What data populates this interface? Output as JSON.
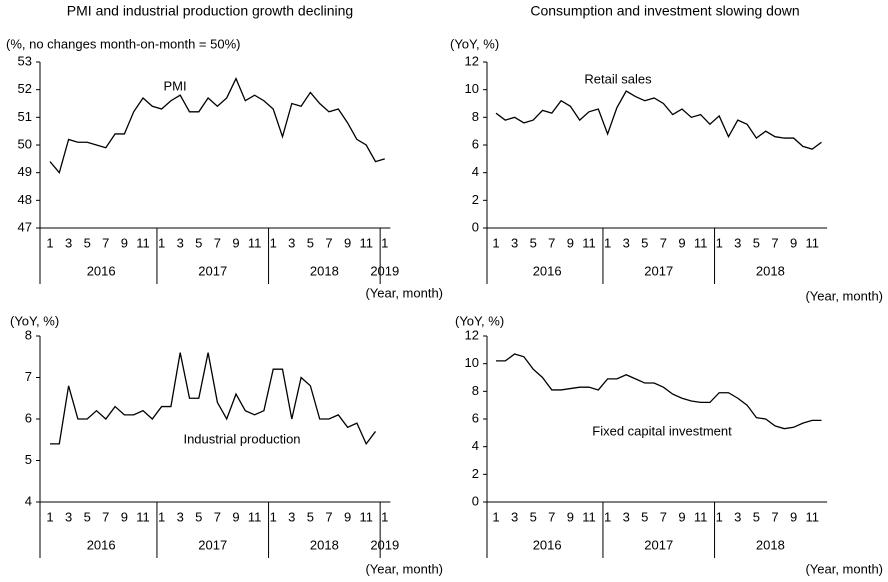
{
  "chart_data": [
    {
      "type": "line",
      "title": "PMI and industrial production growth declining",
      "y_label": "(%, no changes month-on-month  = 50%)",
      "x_label": "(Year, month)",
      "categories": [
        "1",
        null,
        "3",
        null,
        "5",
        null,
        "7",
        null,
        "9",
        null,
        "11",
        null,
        "1",
        null,
        "3",
        null,
        "5",
        null,
        "7",
        null,
        "9",
        null,
        "11",
        null,
        "1",
        null,
        "3",
        null,
        "5",
        null,
        "7",
        null,
        "9",
        null,
        "11",
        null,
        "1"
      ],
      "groups": [
        "2016",
        "2017",
        "2018",
        "2019"
      ],
      "ylim": [
        47,
        53
      ],
      "yticks": [
        47,
        48,
        49,
        50,
        51,
        52,
        53
      ],
      "series": [
        {
          "name": "PMI",
          "color": "#000000",
          "values": [
            49.4,
            49.0,
            50.2,
            50.1,
            50.1,
            50.0,
            49.9,
            50.4,
            50.4,
            51.2,
            51.7,
            51.4,
            51.3,
            51.6,
            51.8,
            51.2,
            51.2,
            51.7,
            51.4,
            51.7,
            52.4,
            51.6,
            51.8,
            51.6,
            51.3,
            50.3,
            51.5,
            51.4,
            51.9,
            51.5,
            51.2,
            51.3,
            50.8,
            50.2,
            50.0,
            49.4,
            49.5
          ]
        }
      ]
    },
    {
      "type": "line",
      "title": "Consumption and investment slowing down",
      "y_label": "(YoY, %)",
      "x_label": "(Year, month)",
      "categories": [
        "1",
        null,
        "3",
        null,
        "5",
        null,
        "7",
        null,
        "9",
        null,
        "11",
        null,
        "1",
        null,
        "3",
        null,
        "5",
        null,
        "7",
        null,
        "9",
        null,
        "11",
        null,
        "1",
        null,
        "3",
        null,
        "5",
        null,
        "7",
        null,
        "9",
        null,
        "11",
        null
      ],
      "groups": [
        "2016",
        "2017",
        "2018"
      ],
      "ylim": [
        0,
        12
      ],
      "yticks": [
        0,
        2,
        4,
        6,
        8,
        10,
        12
      ],
      "series": [
        {
          "name": "Retail sales",
          "color": "#000000",
          "values": [
            8.3,
            7.8,
            8.0,
            7.6,
            7.8,
            8.5,
            8.3,
            9.2,
            8.8,
            7.8,
            8.4,
            8.6,
            6.8,
            8.7,
            9.9,
            9.5,
            9.2,
            9.4,
            9.0,
            8.2,
            8.6,
            8.0,
            8.2,
            7.5,
            8.1,
            6.6,
            7.8,
            7.5,
            6.5,
            7.0,
            6.6,
            6.5,
            6.5,
            5.9,
            5.7,
            6.2
          ]
        }
      ]
    },
    {
      "type": "line",
      "y_label": "(YoY, %)",
      "x_label": "(Year, month)",
      "categories": [
        "1",
        null,
        "3",
        null,
        "5",
        null,
        "7",
        null,
        "9",
        null,
        "11",
        null,
        "1",
        null,
        "3",
        null,
        "5",
        null,
        "7",
        null,
        "9",
        null,
        "11",
        null,
        "1",
        null,
        "3",
        null,
        "5",
        null,
        "7",
        null,
        "9",
        null,
        "11",
        null,
        "1"
      ],
      "groups": [
        "2016",
        "2017",
        "2018",
        "2019"
      ],
      "ylim": [
        4,
        8
      ],
      "yticks": [
        4,
        5,
        6,
        7,
        8
      ],
      "series": [
        {
          "name": "Industrial production",
          "color": "#000000",
          "values": [
            5.4,
            5.4,
            6.8,
            6.0,
            6.0,
            6.2,
            6.0,
            6.3,
            6.1,
            6.1,
            6.2,
            6.0,
            6.3,
            6.3,
            7.6,
            6.5,
            6.5,
            7.6,
            6.4,
            6.0,
            6.6,
            6.2,
            6.1,
            6.2,
            7.2,
            7.2,
            6.0,
            7.0,
            6.8,
            6.0,
            6.0,
            6.1,
            5.8,
            5.9,
            5.4,
            5.7,
            null
          ]
        }
      ]
    },
    {
      "type": "line",
      "y_label": "(YoY, %)",
      "x_label": "(Year, month)",
      "categories": [
        "1",
        null,
        "3",
        null,
        "5",
        null,
        "7",
        null,
        "9",
        null,
        "11",
        null,
        "1",
        null,
        "3",
        null,
        "5",
        null,
        "7",
        null,
        "9",
        null,
        "11",
        null,
        "1",
        null,
        "3",
        null,
        "5",
        null,
        "7",
        null,
        "9",
        null,
        "11",
        null
      ],
      "groups": [
        "2016",
        "2017",
        "2018"
      ],
      "ylim": [
        0,
        12
      ],
      "yticks": [
        0,
        2,
        4,
        6,
        8,
        10,
        12
      ],
      "series": [
        {
          "name": "Fixed capital investment",
          "color": "#000000",
          "values": [
            10.2,
            10.2,
            10.7,
            10.5,
            9.6,
            9.0,
            8.1,
            8.1,
            8.2,
            8.3,
            8.3,
            8.1,
            8.9,
            8.9,
            9.2,
            8.9,
            8.6,
            8.6,
            8.3,
            7.8,
            7.5,
            7.3,
            7.2,
            7.2,
            7.9,
            7.9,
            7.5,
            7.0,
            6.1,
            6.0,
            5.5,
            5.3,
            5.4,
            5.7,
            5.9,
            5.9
          ]
        }
      ]
    }
  ]
}
